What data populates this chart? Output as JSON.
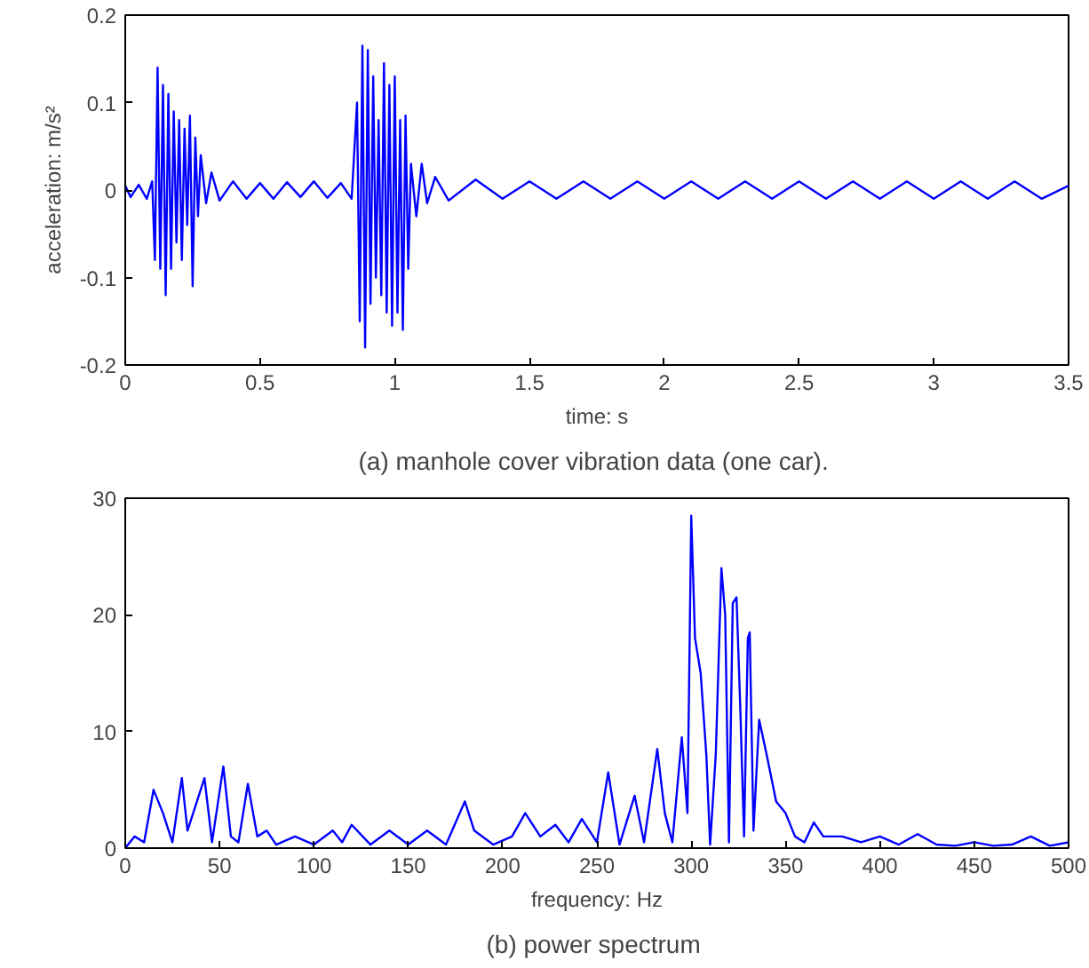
{
  "chart_data": [
    {
      "type": "line",
      "xlabel": "time: s",
      "ylabel": "acceleration: m/s²",
      "annotations": [
        "(a)  manhole cover vibration data (one car)."
      ],
      "xlim": [
        0,
        3.5
      ],
      "ylim": [
        -0.2,
        0.2
      ],
      "xticks": [
        0,
        0.5,
        1,
        1.5,
        2,
        2.5,
        3,
        3.5
      ],
      "yticks": [
        -0.2,
        -0.1,
        0,
        0.1,
        0.2
      ],
      "series": [
        {
          "color": "#0000ff",
          "x": [
            0,
            0.02,
            0.05,
            0.08,
            0.1,
            0.11,
            0.12,
            0.13,
            0.14,
            0.15,
            0.16,
            0.17,
            0.18,
            0.19,
            0.2,
            0.21,
            0.22,
            0.23,
            0.24,
            0.25,
            0.26,
            0.27,
            0.28,
            0.3,
            0.32,
            0.35,
            0.4,
            0.45,
            0.5,
            0.55,
            0.6,
            0.65,
            0.7,
            0.75,
            0.8,
            0.84,
            0.86,
            0.87,
            0.88,
            0.89,
            0.9,
            0.91,
            0.92,
            0.93,
            0.94,
            0.95,
            0.96,
            0.97,
            0.98,
            0.99,
            1.0,
            1.01,
            1.02,
            1.03,
            1.04,
            1.05,
            1.06,
            1.08,
            1.1,
            1.12,
            1.15,
            1.2,
            1.3,
            1.4,
            1.5,
            1.6,
            1.7,
            1.8,
            1.9,
            2.0,
            2.1,
            2.2,
            2.3,
            2.4,
            2.5,
            2.6,
            2.7,
            2.8,
            2.9,
            3.0,
            3.1,
            3.2,
            3.3,
            3.4,
            3.5
          ],
          "values": [
            0.005,
            -0.008,
            0.006,
            -0.01,
            0.01,
            -0.08,
            0.14,
            -0.09,
            0.12,
            -0.12,
            0.11,
            -0.09,
            0.09,
            -0.06,
            0.08,
            -0.08,
            0.07,
            -0.04,
            0.085,
            -0.11,
            0.06,
            -0.03,
            0.04,
            -0.015,
            0.02,
            -0.012,
            0.01,
            -0.01,
            0.008,
            -0.01,
            0.009,
            -0.008,
            0.01,
            -0.009,
            0.008,
            -0.01,
            0.1,
            -0.15,
            0.165,
            -0.18,
            0.16,
            -0.13,
            0.13,
            -0.1,
            0.08,
            -0.12,
            0.145,
            -0.14,
            0.12,
            -0.155,
            0.13,
            -0.14,
            0.08,
            -0.16,
            0.085,
            -0.09,
            0.03,
            -0.03,
            0.03,
            -0.015,
            0.015,
            -0.012,
            0.012,
            -0.01,
            0.01,
            -0.01,
            0.01,
            -0.01,
            0.01,
            -0.01,
            0.01,
            -0.01,
            0.01,
            -0.01,
            0.01,
            -0.01,
            0.01,
            -0.01,
            0.01,
            -0.01,
            0.01,
            -0.01,
            0.01,
            -0.01,
            0.005
          ]
        }
      ]
    },
    {
      "type": "line",
      "xlabel": "frequency: Hz",
      "annotations": [
        "(b)  power spectrum"
      ],
      "xlim": [
        0,
        500
      ],
      "ylim": [
        0,
        30
      ],
      "xticks": [
        0,
        50,
        100,
        150,
        200,
        250,
        300,
        350,
        400,
        450,
        500
      ],
      "yticks": [
        0,
        10,
        20,
        30
      ],
      "series": [
        {
          "color": "#0000ff",
          "x": [
            0,
            5,
            10,
            15,
            20,
            25,
            30,
            33,
            36,
            42,
            46,
            52,
            56,
            60,
            65,
            70,
            75,
            80,
            90,
            100,
            110,
            115,
            120,
            130,
            140,
            150,
            160,
            170,
            180,
            185,
            195,
            205,
            212,
            220,
            228,
            235,
            242,
            250,
            256,
            262,
            270,
            275,
            282,
            286,
            290,
            295,
            298,
            300,
            302,
            305,
            308,
            310,
            313,
            316,
            318,
            320,
            322,
            324,
            326,
            328,
            330,
            331,
            333,
            336,
            340,
            345,
            350,
            355,
            360,
            365,
            370,
            380,
            390,
            400,
            410,
            420,
            430,
            440,
            450,
            460,
            470,
            480,
            490,
            500
          ],
          "values": [
            0,
            1,
            0.5,
            5,
            3,
            0.5,
            6,
            1.5,
            3,
            6,
            0.5,
            7,
            1,
            0.5,
            5.5,
            1,
            1.5,
            0.3,
            1,
            0.3,
            1.5,
            0.5,
            2,
            0.3,
            1.5,
            0.3,
            1.5,
            0.3,
            4,
            1.5,
            0.3,
            1,
            3,
            1,
            2,
            0.5,
            2.5,
            0.5,
            6.5,
            0.3,
            4.5,
            0.5,
            8.5,
            3,
            0.5,
            9.5,
            3,
            28.5,
            18,
            15,
            8,
            0.3,
            8,
            24,
            20,
            0.5,
            21,
            21.5,
            12,
            1,
            18,
            18.5,
            1.5,
            11,
            8,
            4,
            3,
            1,
            0.5,
            2.2,
            1,
            1,
            0.5,
            1,
            0.3,
            1.2,
            0.3,
            0.2,
            0.5,
            0.2,
            0.3,
            1,
            0.2,
            0.5
          ]
        }
      ]
    }
  ]
}
